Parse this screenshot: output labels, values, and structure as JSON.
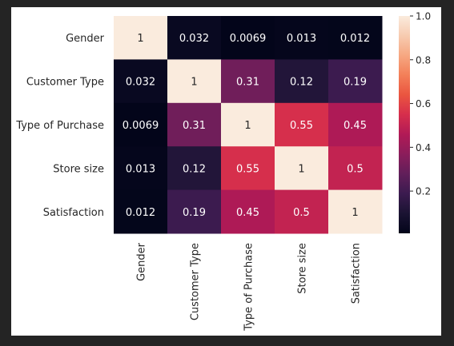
{
  "chart_data": {
    "type": "heatmap",
    "row_labels": [
      "Gender",
      "Customer Type",
      "Type of Purchase",
      "Store size",
      "Satisfaction"
    ],
    "col_labels": [
      "Gender",
      "Customer Type",
      "Type of Purchase",
      "Store size",
      "Satisfaction"
    ],
    "values": [
      [
        1,
        0.032,
        0.0069,
        0.013,
        0.012
      ],
      [
        0.032,
        1,
        0.31,
        0.12,
        0.19
      ],
      [
        0.0069,
        0.31,
        1,
        0.55,
        0.45
      ],
      [
        0.013,
        0.12,
        0.55,
        1,
        0.5
      ],
      [
        0.012,
        0.19,
        0.45,
        0.5,
        1
      ]
    ],
    "cell_labels": [
      [
        "1",
        "0.032",
        "0.0069",
        "0.013",
        "0.012"
      ],
      [
        "0.032",
        "1",
        "0.31",
        "0.12",
        "0.19"
      ],
      [
        "0.0069",
        "0.31",
        "1",
        "0.55",
        "0.45"
      ],
      [
        "0.013",
        "0.12",
        "0.55",
        "1",
        "0.5"
      ],
      [
        "0.012",
        "0.19",
        "0.45",
        "0.5",
        "1"
      ]
    ],
    "colorbar": {
      "range": [
        0.0069,
        1.0
      ],
      "ticks": [
        0.2,
        0.4,
        0.6,
        0.8,
        1.0
      ],
      "tick_labels": [
        "0.2",
        "0.4",
        "0.6",
        "0.8",
        "1.0"
      ],
      "colormap": "rocket",
      "colors": [
        "#03051a",
        "#1a1332",
        "#3b1b4f",
        "#611f5a",
        "#8b1d5b",
        "#b11a56",
        "#d62e4c",
        "#ea5540",
        "#f37f58",
        "#f6a781",
        "#f7cbb0",
        "#faebdd"
      ]
    },
    "annotation_colors": {
      "light": "#ffffff",
      "dark": "#262626"
    },
    "grid": false
  }
}
